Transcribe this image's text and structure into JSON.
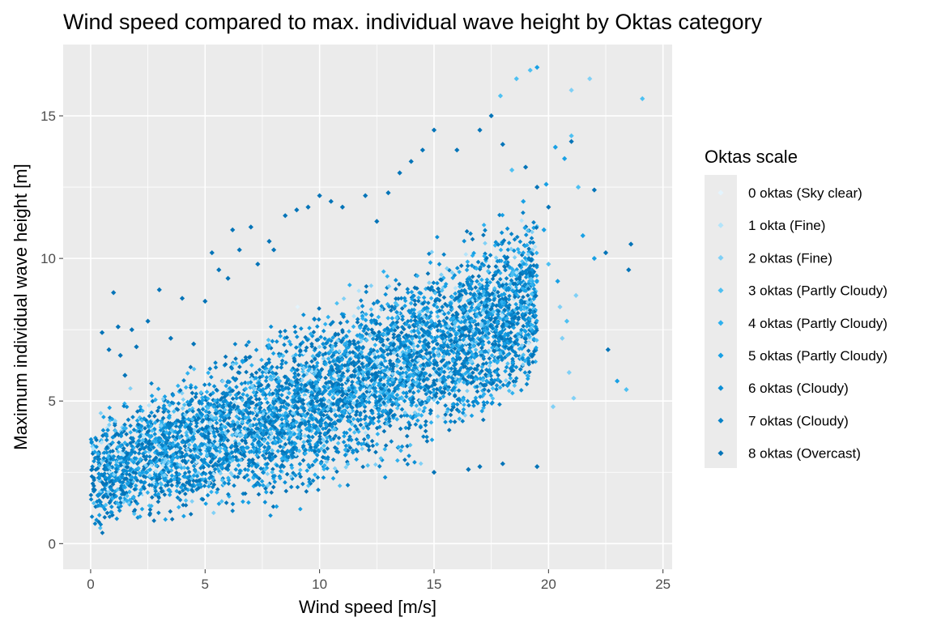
{
  "chart_data": {
    "type": "scatter",
    "title": "Wind speed compared to max. individual wave height by Oktas category",
    "xlabel": "Wind speed [m/s]",
    "ylabel": "Maximum individual wave height [m]",
    "xlim": [
      -1.2,
      25.4
    ],
    "ylim": [
      -0.9,
      17.5
    ],
    "x_ticks": [
      0,
      5,
      10,
      15,
      20,
      25
    ],
    "y_ticks": [
      0,
      5,
      10,
      15
    ],
    "x_tick_labels": [
      "0",
      "5",
      "10",
      "15",
      "20",
      "25"
    ],
    "y_tick_labels": [
      "0",
      "5",
      "10",
      "15"
    ],
    "grid": true,
    "legend": {
      "title": "Oktas scale",
      "position": "right",
      "entries": [
        {
          "label": "0 oktas (Sky clear)",
          "color": "#e3f4fd"
        },
        {
          "label": "1 okta (Fine)",
          "color": "#b3e4fa"
        },
        {
          "label": "2 oktas (Fine)",
          "color": "#7fd0f6"
        },
        {
          "label": "3 oktas (Partly Cloudy)",
          "color": "#4dc0f2"
        },
        {
          "label": "4 oktas (Partly Cloudy)",
          "color": "#2eb0ee"
        },
        {
          "label": "5 oktas (Partly Cloudy)",
          "color": "#18a0e4"
        },
        {
          "label": "6 oktas (Cloudy)",
          "color": "#0c8fd6"
        },
        {
          "label": "7 oktas (Cloudy)",
          "color": "#0782c8"
        },
        {
          "label": "8 oktas (Overcast)",
          "color": "#0474b8"
        }
      ]
    },
    "series": [
      {
        "name": "8 oktas (Overcast)",
        "color": "#0474b8",
        "points": [
          [
            0.5,
            7.4
          ],
          [
            0.8,
            6.8
          ],
          [
            1.0,
            8.8
          ],
          [
            1.2,
            7.6
          ],
          [
            1.3,
            6.6
          ],
          [
            1.5,
            5.9
          ],
          [
            1.8,
            7.5
          ],
          [
            2.0,
            6.9
          ],
          [
            2.5,
            7.8
          ],
          [
            3.0,
            8.9
          ],
          [
            3.5,
            7.2
          ],
          [
            4.0,
            8.6
          ],
          [
            4.5,
            7.0
          ],
          [
            5.0,
            8.5
          ],
          [
            5.3,
            10.2
          ],
          [
            5.6,
            9.6
          ],
          [
            6.0,
            9.3
          ],
          [
            6.2,
            11.0
          ],
          [
            6.5,
            10.3
          ],
          [
            7.0,
            11.1
          ],
          [
            7.3,
            9.8
          ],
          [
            7.8,
            10.6
          ],
          [
            8.0,
            10.3
          ],
          [
            8.5,
            11.5
          ],
          [
            9.0,
            11.7
          ],
          [
            9.5,
            11.8
          ],
          [
            10.0,
            12.2
          ],
          [
            10.5,
            12.0
          ],
          [
            11.0,
            11.8
          ],
          [
            12.0,
            12.2
          ],
          [
            12.5,
            11.3
          ],
          [
            13.0,
            12.3
          ],
          [
            13.5,
            13.0
          ],
          [
            14.0,
            13.4
          ],
          [
            14.5,
            13.8
          ],
          [
            15.0,
            14.5
          ],
          [
            16.0,
            13.8
          ],
          [
            17.0,
            14.5
          ],
          [
            17.5,
            15.0
          ],
          [
            18.0,
            14.0
          ],
          [
            19.0,
            13.2
          ],
          [
            19.5,
            12.5
          ],
          [
            20.0,
            11.8
          ],
          [
            21.0,
            14.1
          ],
          [
            22.0,
            12.4
          ],
          [
            22.5,
            10.2
          ],
          [
            23.5,
            9.6
          ],
          [
            23.6,
            10.5
          ],
          [
            22.6,
            6.8
          ],
          [
            19.5,
            2.7
          ],
          [
            17.0,
            2.7
          ],
          [
            18.0,
            2.8
          ],
          [
            16.5,
            2.6
          ],
          [
            15.0,
            2.5
          ]
        ]
      },
      {
        "name": "2 oktas (Fine)",
        "color": "#7fd0f6",
        "points": [
          [
            20.6,
            7.2
          ],
          [
            21.2,
            8.7
          ],
          [
            20.9,
            6.0
          ],
          [
            21.1,
            5.1
          ],
          [
            21.8,
            16.3
          ],
          [
            21.0,
            15.9
          ],
          [
            20.2,
            4.8
          ],
          [
            20.5,
            8.3
          ]
        ]
      },
      {
        "name": "3 oktas (Partly Cloudy)",
        "color": "#4dc0f2",
        "points": [
          [
            19.2,
            16.6
          ],
          [
            18.6,
            16.3
          ],
          [
            24.1,
            15.6
          ],
          [
            21.0,
            14.3
          ],
          [
            17.9,
            15.7
          ],
          [
            20.0,
            9.8
          ],
          [
            21.3,
            12.5
          ],
          [
            23.4,
            5.4
          ],
          [
            20.8,
            7.8
          ],
          [
            18.4,
            13.1
          ]
        ]
      },
      {
        "name": "5 oktas (Partly Cloudy)",
        "color": "#18a0e4",
        "points": [
          [
            19.5,
            16.7
          ],
          [
            23.0,
            5.7
          ],
          [
            20.4,
            9.2
          ],
          [
            21.5,
            10.8
          ],
          [
            19.8,
            11.0
          ],
          [
            20.7,
            13.5
          ],
          [
            19.9,
            12.6
          ],
          [
            22.0,
            10.0
          ],
          [
            18.9,
            12.0
          ],
          [
            20.3,
            13.9
          ]
        ]
      }
    ]
  }
}
